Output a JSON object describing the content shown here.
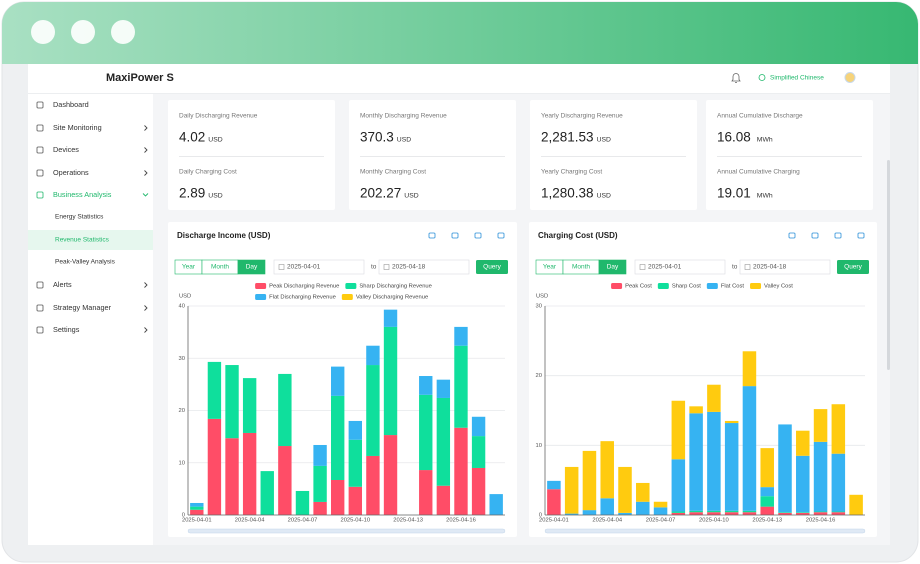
{
  "header": {
    "title": "MaxiPower S",
    "language": "Simplified Chinese"
  },
  "sidebar": {
    "items": [
      "Dashboard",
      "Site Monitoring",
      "Devices",
      "Operations",
      "Business Analysis",
      "Energy Statistics",
      "Revenue Statistics",
      "Peak-Valley Analysis",
      "Alerts",
      "Strategy Manager",
      "Settings"
    ]
  },
  "cards": [
    {
      "items": [
        {
          "label": "Daily Discharging Revenue",
          "value": "4.02",
          "unit": "USD"
        },
        {
          "label": "Daily Charging Cost",
          "value": "2.89",
          "unit": "USD"
        }
      ]
    },
    {
      "items": [
        {
          "label": "Monthly Discharging Revenue",
          "value": "370.3",
          "unit": "USD"
        },
        {
          "label": "Monthly Charging Cost",
          "value": "202.27",
          "unit": "USD"
        }
      ]
    },
    {
      "items": [
        {
          "label": "Yearly Discharging Revenue",
          "value": "2,281.53",
          "unit": "USD"
        },
        {
          "label": "Yearly Charging Cost",
          "value": "1,280.38",
          "unit": "USD"
        }
      ]
    },
    {
      "items": [
        {
          "label": "Annual Cumulative Discharge",
          "value": "16.08",
          "unit": "MWh"
        },
        {
          "label": "Annual Cumulative Charging",
          "value": "19.01",
          "unit": "MWh"
        }
      ]
    }
  ],
  "panels": [
    {
      "tabs": [
        "Year",
        "Month",
        "Day"
      ],
      "from": "2025-04-01",
      "to_label": "to",
      "until": "2025-04-18",
      "button": "Query"
    },
    {
      "tabs": [
        "Year",
        "Month",
        "Day"
      ],
      "from": "2025-04-01",
      "to_label": "to",
      "until": "2025-04-18",
      "button": "Query"
    }
  ],
  "chart_data": [
    {
      "type": "bar",
      "stacked": true,
      "title": "Discharge Income (USD)",
      "y_label": "USD",
      "grid": true,
      "categories": [
        "2025-04-01",
        null,
        null,
        "2025-04-04",
        null,
        null,
        "2025-04-07",
        null,
        null,
        "2025-04-10",
        null,
        null,
        "2025-04-13",
        null,
        null,
        "2025-04-16",
        null,
        null
      ],
      "ylim": [
        0,
        40
      ],
      "yticks": [
        0,
        10,
        20,
        30,
        40
      ],
      "series": [
        {
          "name": "Peak Discharging Revenue",
          "color": "#ff4d67",
          "values": [
            1.0,
            18.4,
            14.7,
            15.7,
            0,
            13.2,
            0,
            2.5,
            6.7,
            5.4,
            11.3,
            15.3,
            0,
            8.6,
            5.6,
            16.7,
            9.0,
            0
          ]
        },
        {
          "name": "Sharp Discharging Revenue",
          "color": "#0fdf9c",
          "values": [
            0.6,
            10.9,
            14.0,
            10.5,
            8.4,
            13.8,
            4.6,
            6.9,
            16.1,
            9.0,
            17.4,
            20.7,
            0,
            14.4,
            16.8,
            15.7,
            6.1,
            0
          ]
        },
        {
          "name": "Flat Discharging Revenue",
          "color": "#36b3f2",
          "values": [
            0.7,
            0,
            0,
            0,
            0,
            0,
            0,
            4.0,
            5.6,
            3.6,
            3.7,
            3.3,
            0,
            3.6,
            3.5,
            3.6,
            3.7,
            4.0
          ]
        },
        {
          "name": "Valley Discharging Revenue",
          "color": "#ffcb0f",
          "values": [
            0,
            0,
            0,
            0,
            0,
            0,
            0,
            0,
            0,
            0,
            0,
            0,
            0,
            0,
            0,
            0,
            0,
            0
          ]
        }
      ]
    },
    {
      "type": "bar",
      "stacked": true,
      "title": "Charging Cost (USD)",
      "y_label": "USD",
      "grid": true,
      "categories": [
        "2025-04-01",
        null,
        null,
        "2025-04-04",
        null,
        null,
        "2025-04-07",
        null,
        null,
        "2025-04-10",
        null,
        null,
        "2025-04-13",
        null,
        null,
        "2025-04-16",
        null,
        null
      ],
      "ylim": [
        0,
        30
      ],
      "yticks": [
        0,
        10,
        20,
        30
      ],
      "series": [
        {
          "name": "Peak Cost",
          "color": "#ff4d67",
          "values": [
            3.7,
            0,
            0,
            0,
            0,
            0,
            0,
            0.3,
            0.4,
            0.4,
            0.4,
            0.4,
            1.2,
            0.3,
            0.3,
            0.4,
            0.4,
            0
          ]
        },
        {
          "name": "Sharp Cost",
          "color": "#0fdf9c",
          "values": [
            0,
            0,
            0,
            0,
            0,
            0,
            0,
            0.2,
            0.2,
            0.2,
            0.2,
            0.2,
            1.5,
            0.1,
            0.1,
            0.1,
            0.1,
            0
          ]
        },
        {
          "name": "Flat Cost",
          "color": "#36b3f2",
          "values": [
            1.2,
            0.2,
            0.7,
            2.4,
            0.3,
            1.9,
            1.1,
            7.5,
            14.0,
            14.2,
            12.6,
            17.9,
            1.3,
            12.6,
            8.1,
            10.0,
            8.3,
            0
          ]
        },
        {
          "name": "Valley Cost",
          "color": "#ffcb0f",
          "values": [
            0,
            6.7,
            8.5,
            8.2,
            6.6,
            2.7,
            0.8,
            8.4,
            1.0,
            3.9,
            0.3,
            5.0,
            5.6,
            0,
            3.6,
            4.7,
            7.1,
            2.9
          ]
        }
      ]
    }
  ]
}
